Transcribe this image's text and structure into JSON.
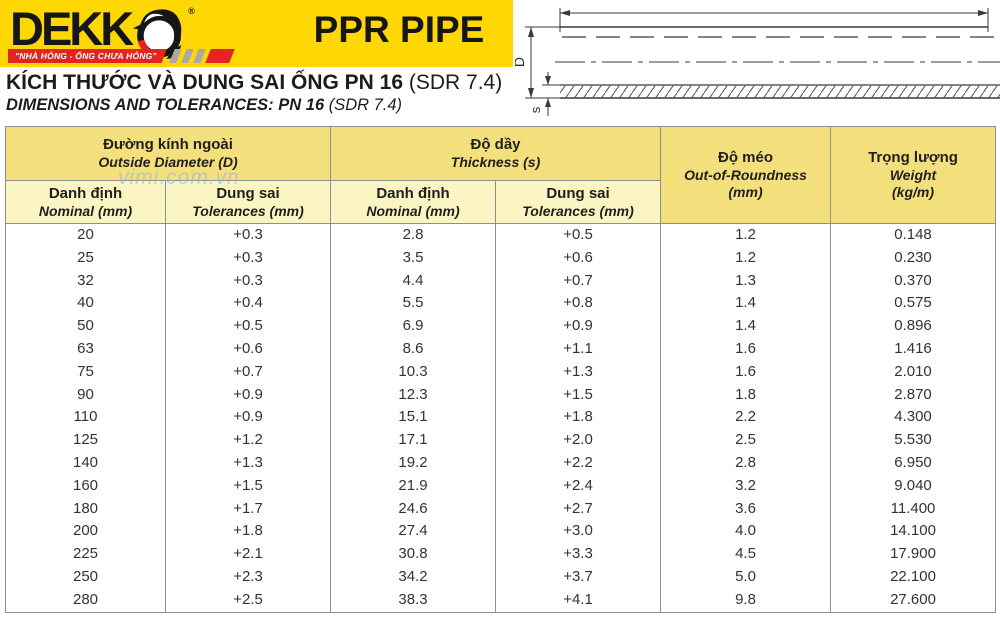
{
  "brand": {
    "logo_prefix": "DEKK",
    "logo_icon": "dolphin-ring-o-icon",
    "registered_mark": "®",
    "slogan": "\"NHÀ HỎNG - ỐNG CHƯA HỎNG\"",
    "product": "PPR PIPE"
  },
  "colors": {
    "banner_yellow": "#ffd705",
    "slogan_red": "#e4251f",
    "logo_black": "#161616",
    "group_header_bg": "#f3df7b",
    "subheader_bg": "#fbf5c3",
    "table_border": "#8f8f8f",
    "watermark_blue": "#8fb6d9"
  },
  "diagram": {
    "outer_diameter_label": "D",
    "wall_thickness_label": "s"
  },
  "title": {
    "vi_main": "KÍCH THƯỚC VÀ DUNG SAI ỐNG PN 16",
    "vi_suffix": " (SDR 7.4)",
    "en_main": "DIMENSIONS AND TOLERANCES: PN 16",
    "en_suffix": " (SDR 7.4)"
  },
  "watermark": "vimi.com.vn",
  "table": {
    "groups": [
      {
        "vi": "Đường kính ngoài",
        "en": "Outside Diameter (D)"
      },
      {
        "vi": "Độ dầy",
        "en": "Thickness (s)"
      },
      {
        "vi": "Độ méo",
        "en": "Out-of-Roundness",
        "unit": "(mm)"
      },
      {
        "vi": "Trọng lượng",
        "en": "Weight",
        "unit": "(kg/m)"
      }
    ],
    "subheaders": [
      {
        "vi": "Danh định",
        "en": "Nominal (mm)"
      },
      {
        "vi": "Dung sai",
        "en": "Tolerances (mm)"
      },
      {
        "vi": "Danh định",
        "en": "Nominal (mm)"
      },
      {
        "vi": "Dung sai",
        "en": "Tolerances (mm)"
      }
    ],
    "rows": [
      [
        "20",
        "+0.3",
        "2.8",
        "+0.5",
        "1.2",
        "0.148"
      ],
      [
        "25",
        "+0.3",
        "3.5",
        "+0.6",
        "1.2",
        "0.230"
      ],
      [
        "32",
        "+0.3",
        "4.4",
        "+0.7",
        "1.3",
        "0.370"
      ],
      [
        "40",
        "+0.4",
        "5.5",
        "+0.8",
        "1.4",
        "0.575"
      ],
      [
        "50",
        "+0.5",
        "6.9",
        "+0.9",
        "1.4",
        "0.896"
      ],
      [
        "63",
        "+0.6",
        "8.6",
        "+1.1",
        "1.6",
        "1.416"
      ],
      [
        "75",
        "+0.7",
        "10.3",
        "+1.3",
        "1.6",
        "2.010"
      ],
      [
        "90",
        "+0.9",
        "12.3",
        "+1.5",
        "1.8",
        "2.870"
      ],
      [
        "110",
        "+0.9",
        "15.1",
        "+1.8",
        "2.2",
        "4.300"
      ],
      [
        "125",
        "+1.2",
        "17.1",
        "+2.0",
        "2.5",
        "5.530"
      ],
      [
        "140",
        "+1.3",
        "19.2",
        "+2.2",
        "2.8",
        "6.950"
      ],
      [
        "160",
        "+1.5",
        "21.9",
        "+2.4",
        "3.2",
        "9.040"
      ],
      [
        "180",
        "+1.7",
        "24.6",
        "+2.7",
        "3.6",
        "11.400"
      ],
      [
        "200",
        "+1.8",
        "27.4",
        "+3.0",
        "4.0",
        "14.100"
      ],
      [
        "225",
        "+2.1",
        "30.8",
        "+3.3",
        "4.5",
        "17.900"
      ],
      [
        "250",
        "+2.3",
        "34.2",
        "+3.7",
        "5.0",
        "22.100"
      ],
      [
        "280",
        "+2.5",
        "38.3",
        "+4.1",
        "9.8",
        "27.600"
      ]
    ]
  }
}
